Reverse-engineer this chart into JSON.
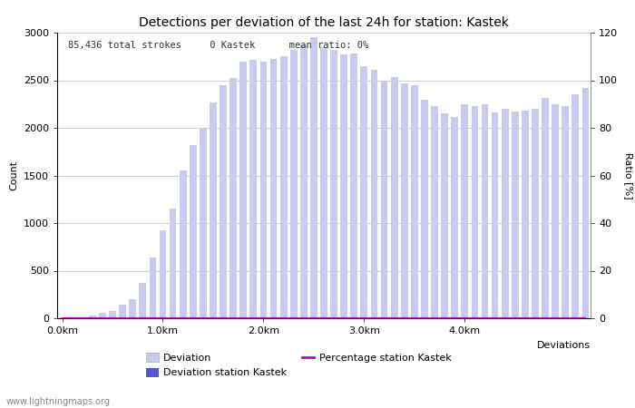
{
  "title": "Detections per deviation of the last 24h for station: Kastek",
  "annotation": "85,436 total strokes     0 Kastek      mean ratio: 0%",
  "ylabel_left": "Count",
  "ylabel_right": "Ratio [%]",
  "xlabel": "Deviations",
  "watermark": "www.lightningmaps.org",
  "ylim_left": [
    0,
    3000
  ],
  "ylim_right": [
    0,
    120
  ],
  "yticks_left": [
    0,
    500,
    1000,
    1500,
    2000,
    2500,
    3000
  ],
  "yticks_right": [
    0,
    20,
    40,
    60,
    80,
    100,
    120
  ],
  "xtick_labels": [
    "0.0km",
    "1.0km",
    "2.0km",
    "3.0km",
    "4.0km"
  ],
  "xtick_positions": [
    0,
    10,
    20,
    30,
    40
  ],
  "bar_color_light": "#c8caee",
  "bar_color_dark": "#5555cc",
  "line_color": "#cc00cc",
  "grid_color": "#c8c8c8",
  "deviation_values": [
    5,
    5,
    10,
    30,
    60,
    80,
    140,
    200,
    370,
    640,
    920,
    1150,
    1550,
    1820,
    2000,
    2270,
    2450,
    2520,
    2700,
    2710,
    2700,
    2720,
    2750,
    2820,
    2870,
    2950,
    2850,
    2820,
    2770,
    2780,
    2650,
    2610,
    2490,
    2530,
    2470,
    2450,
    2300,
    2230,
    2150,
    2110,
    2250,
    2230,
    2250,
    2160,
    2200,
    2170,
    2180,
    2200,
    2310,
    2250,
    2230,
    2350,
    2420
  ],
  "station_values": [
    0,
    0,
    0,
    0,
    0,
    0,
    0,
    0,
    0,
    0,
    0,
    0,
    0,
    0,
    0,
    0,
    0,
    0,
    0,
    0,
    0,
    0,
    0,
    0,
    0,
    0,
    0,
    0,
    0,
    0,
    0,
    0,
    0,
    0,
    0,
    0,
    0,
    0,
    0,
    0,
    0,
    0,
    0,
    0,
    0,
    0,
    0,
    0,
    0,
    0,
    0,
    0,
    0
  ],
  "percentage_values": [
    0,
    0,
    0,
    0,
    0,
    0,
    0,
    0,
    0,
    0,
    0,
    0,
    0,
    0,
    0,
    0,
    0,
    0,
    0,
    0,
    0,
    0,
    0,
    0,
    0,
    0,
    0,
    0,
    0,
    0,
    0,
    0,
    0,
    0,
    0,
    0,
    0,
    0,
    0,
    0,
    0,
    0,
    0,
    0,
    0,
    0,
    0,
    0,
    0,
    0,
    0,
    0,
    0
  ]
}
